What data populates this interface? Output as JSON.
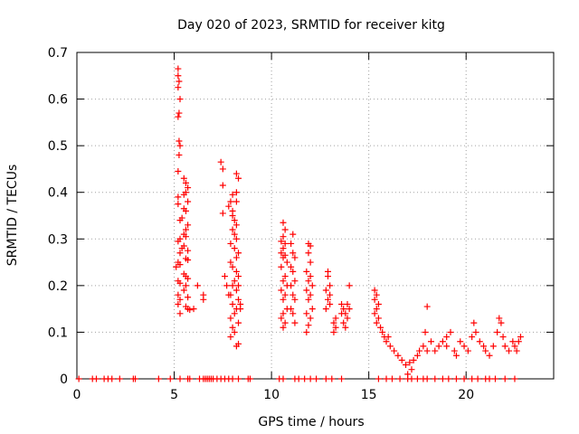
{
  "chart_data": {
    "type": "scatter",
    "title": "Day 020 of 2023, SRMTID for receiver kitg",
    "xlabel": "GPS time / hours",
    "ylabel": "SRMTID / TECUs",
    "xlim": [
      0,
      24.5
    ],
    "ylim": [
      0,
      0.7
    ],
    "xticks": [
      0,
      5,
      10,
      15,
      20
    ],
    "yticks": [
      0,
      0.1,
      0.2,
      0.3,
      0.4,
      0.5,
      0.6,
      0.7
    ],
    "xtick_labels": [
      "0",
      "5",
      "10",
      "15",
      "20"
    ],
    "ytick_labels": [
      "0",
      "0.1",
      "0.2",
      "0.3",
      "0.4",
      "0.5",
      "0.6",
      "0.7"
    ],
    "grid": true,
    "marker": "+",
    "color": "#ff0000",
    "series": [
      {
        "name": "kitg",
        "points": [
          [
            0.1,
            0
          ],
          [
            0.8,
            0
          ],
          [
            1.0,
            0
          ],
          [
            1.4,
            0
          ],
          [
            1.6,
            0
          ],
          [
            1.8,
            0
          ],
          [
            2.2,
            0
          ],
          [
            2.9,
            0
          ],
          [
            3.0,
            0
          ],
          [
            4.2,
            0
          ],
          [
            4.8,
            0
          ],
          [
            5.3,
            0
          ],
          [
            5.7,
            0
          ],
          [
            5.8,
            0
          ],
          [
            6.3,
            0
          ],
          [
            6.5,
            0
          ],
          [
            6.6,
            0
          ],
          [
            6.7,
            0
          ],
          [
            6.8,
            0
          ],
          [
            6.9,
            0
          ],
          [
            7.0,
            0
          ],
          [
            7.2,
            0
          ],
          [
            7.4,
            0
          ],
          [
            7.6,
            0
          ],
          [
            7.8,
            0
          ],
          [
            8.0,
            0
          ],
          [
            8.3,
            0
          ],
          [
            8.8,
            0
          ],
          [
            8.9,
            0
          ],
          [
            10.4,
            0
          ],
          [
            10.6,
            0
          ],
          [
            11.2,
            0
          ],
          [
            11.4,
            0
          ],
          [
            11.7,
            0
          ],
          [
            12.0,
            0
          ],
          [
            12.3,
            0
          ],
          [
            12.8,
            0
          ],
          [
            13.1,
            0
          ],
          [
            13.6,
            0
          ],
          [
            15.5,
            0
          ],
          [
            15.9,
            0
          ],
          [
            16.2,
            0
          ],
          [
            16.6,
            0
          ],
          [
            17.0,
            0
          ],
          [
            17.2,
            0
          ],
          [
            17.5,
            0
          ],
          [
            17.8,
            0
          ],
          [
            18.0,
            0
          ],
          [
            18.4,
            0
          ],
          [
            18.8,
            0
          ],
          [
            19.1,
            0
          ],
          [
            19.5,
            0
          ],
          [
            19.9,
            0
          ],
          [
            20.3,
            0
          ],
          [
            20.6,
            0
          ],
          [
            21.0,
            0
          ],
          [
            21.2,
            0
          ],
          [
            21.5,
            0
          ],
          [
            22.0,
            0
          ],
          [
            22.5,
            0
          ],
          [
            5.2,
            0.665
          ],
          [
            5.2,
            0.65
          ],
          [
            5.25,
            0.638
          ],
          [
            5.2,
            0.625
          ],
          [
            5.3,
            0.6
          ],
          [
            5.25,
            0.57
          ],
          [
            5.2,
            0.562
          ],
          [
            5.25,
            0.51
          ],
          [
            5.3,
            0.5
          ],
          [
            5.25,
            0.48
          ],
          [
            5.2,
            0.445
          ],
          [
            5.5,
            0.43
          ],
          [
            5.6,
            0.42
          ],
          [
            5.7,
            0.41
          ],
          [
            5.6,
            0.4
          ],
          [
            5.5,
            0.395
          ],
          [
            5.2,
            0.39
          ],
          [
            5.7,
            0.38
          ],
          [
            5.2,
            0.375
          ],
          [
            5.5,
            0.365
          ],
          [
            5.6,
            0.36
          ],
          [
            5.4,
            0.345
          ],
          [
            5.3,
            0.34
          ],
          [
            5.7,
            0.33
          ],
          [
            5.6,
            0.32
          ],
          [
            5.5,
            0.31
          ],
          [
            5.6,
            0.305
          ],
          [
            5.3,
            0.3
          ],
          [
            5.2,
            0.295
          ],
          [
            5.5,
            0.285
          ],
          [
            5.4,
            0.28
          ],
          [
            5.7,
            0.275
          ],
          [
            5.3,
            0.27
          ],
          [
            5.6,
            0.258
          ],
          [
            5.7,
            0.255
          ],
          [
            5.2,
            0.25
          ],
          [
            5.3,
            0.245
          ],
          [
            5.1,
            0.24
          ],
          [
            5.5,
            0.225
          ],
          [
            5.6,
            0.22
          ],
          [
            5.7,
            0.215
          ],
          [
            5.2,
            0.21
          ],
          [
            5.3,
            0.205
          ],
          [
            5.6,
            0.2
          ],
          [
            5.5,
            0.19
          ],
          [
            5.2,
            0.18
          ],
          [
            5.7,
            0.175
          ],
          [
            5.3,
            0.17
          ],
          [
            5.2,
            0.16
          ],
          [
            5.6,
            0.155
          ],
          [
            5.7,
            0.15
          ],
          [
            5.8,
            0.148
          ],
          [
            5.3,
            0.14
          ],
          [
            6.0,
            0.15
          ],
          [
            6.2,
            0.2
          ],
          [
            6.5,
            0.18
          ],
          [
            6.5,
            0.17
          ],
          [
            7.4,
            0.465
          ],
          [
            7.5,
            0.45
          ],
          [
            7.5,
            0.415
          ],
          [
            7.9,
            0.38
          ],
          [
            7.8,
            0.37
          ],
          [
            8.0,
            0.36
          ],
          [
            7.5,
            0.355
          ],
          [
            8.2,
            0.44
          ],
          [
            8.3,
            0.43
          ],
          [
            8.2,
            0.4
          ],
          [
            8.0,
            0.395
          ],
          [
            8.2,
            0.38
          ],
          [
            8.0,
            0.35
          ],
          [
            8.1,
            0.34
          ],
          [
            8.2,
            0.33
          ],
          [
            8.0,
            0.32
          ],
          [
            8.1,
            0.31
          ],
          [
            8.2,
            0.3
          ],
          [
            7.9,
            0.29
          ],
          [
            8.1,
            0.28
          ],
          [
            8.3,
            0.27
          ],
          [
            8.2,
            0.26
          ],
          [
            7.9,
            0.25
          ],
          [
            8.0,
            0.24
          ],
          [
            8.2,
            0.23
          ],
          [
            8.3,
            0.22
          ],
          [
            8.1,
            0.21
          ],
          [
            8.0,
            0.2
          ],
          [
            8.2,
            0.19
          ],
          [
            7.9,
            0.18
          ],
          [
            8.3,
            0.17
          ],
          [
            8.0,
            0.16
          ],
          [
            8.2,
            0.15
          ],
          [
            8.1,
            0.14
          ],
          [
            7.9,
            0.13
          ],
          [
            8.3,
            0.12
          ],
          [
            8.0,
            0.11
          ],
          [
            8.1,
            0.1
          ],
          [
            7.9,
            0.09
          ],
          [
            8.3,
            0.075
          ],
          [
            8.2,
            0.07
          ],
          [
            7.7,
            0.2
          ],
          [
            7.6,
            0.22
          ],
          [
            7.8,
            0.18
          ],
          [
            8.4,
            0.16
          ],
          [
            8.4,
            0.15
          ],
          [
            8.3,
            0.2
          ],
          [
            10.6,
            0.335
          ],
          [
            10.7,
            0.32
          ],
          [
            10.6,
            0.305
          ],
          [
            10.5,
            0.295
          ],
          [
            10.7,
            0.29
          ],
          [
            10.6,
            0.28
          ],
          [
            10.5,
            0.27
          ],
          [
            10.7,
            0.265
          ],
          [
            10.6,
            0.26
          ],
          [
            10.8,
            0.25
          ],
          [
            10.5,
            0.24
          ],
          [
            10.7,
            0.22
          ],
          [
            10.6,
            0.21
          ],
          [
            10.8,
            0.2
          ],
          [
            10.5,
            0.19
          ],
          [
            10.7,
            0.18
          ],
          [
            10.6,
            0.17
          ],
          [
            10.8,
            0.15
          ],
          [
            10.6,
            0.14
          ],
          [
            10.5,
            0.13
          ],
          [
            10.7,
            0.12
          ],
          [
            10.6,
            0.11
          ],
          [
            11.1,
            0.31
          ],
          [
            11.0,
            0.29
          ],
          [
            11.1,
            0.27
          ],
          [
            11.2,
            0.26
          ],
          [
            11.0,
            0.24
          ],
          [
            11.1,
            0.23
          ],
          [
            11.2,
            0.21
          ],
          [
            11.0,
            0.2
          ],
          [
            11.1,
            0.18
          ],
          [
            11.2,
            0.17
          ],
          [
            11.0,
            0.15
          ],
          [
            11.1,
            0.14
          ],
          [
            11.2,
            0.12
          ],
          [
            11.9,
            0.29
          ],
          [
            12.0,
            0.285
          ],
          [
            11.9,
            0.27
          ],
          [
            12.0,
            0.25
          ],
          [
            11.8,
            0.23
          ],
          [
            12.0,
            0.22
          ],
          [
            11.9,
            0.21
          ],
          [
            12.1,
            0.2
          ],
          [
            11.8,
            0.19
          ],
          [
            12.0,
            0.18
          ],
          [
            11.9,
            0.17
          ],
          [
            12.1,
            0.15
          ],
          [
            11.8,
            0.14
          ],
          [
            12.0,
            0.13
          ],
          [
            11.9,
            0.115
          ],
          [
            11.8,
            0.1
          ],
          [
            12.9,
            0.23
          ],
          [
            12.9,
            0.22
          ],
          [
            13.0,
            0.2
          ],
          [
            12.8,
            0.19
          ],
          [
            13.0,
            0.18
          ],
          [
            12.9,
            0.17
          ],
          [
            13.0,
            0.16
          ],
          [
            12.8,
            0.15
          ],
          [
            13.2,
            0.12
          ],
          [
            13.3,
            0.11
          ],
          [
            13.2,
            0.1
          ],
          [
            13.3,
            0.13
          ],
          [
            13.6,
            0.16
          ],
          [
            13.7,
            0.15
          ],
          [
            13.8,
            0.14
          ],
          [
            13.9,
            0.13
          ],
          [
            13.7,
            0.12
          ],
          [
            13.8,
            0.11
          ],
          [
            13.6,
            0.14
          ],
          [
            13.9,
            0.16
          ],
          [
            14.0,
            0.2
          ],
          [
            14.0,
            0.15
          ],
          [
            15.3,
            0.19
          ],
          [
            15.4,
            0.18
          ],
          [
            15.3,
            0.17
          ],
          [
            15.5,
            0.16
          ],
          [
            15.4,
            0.15
          ],
          [
            15.3,
            0.14
          ],
          [
            15.5,
            0.13
          ],
          [
            15.4,
            0.12
          ],
          [
            15.6,
            0.11
          ],
          [
            15.7,
            0.1
          ],
          [
            15.8,
            0.09
          ],
          [
            15.9,
            0.08
          ],
          [
            16.0,
            0.09
          ],
          [
            16.1,
            0.07
          ],
          [
            16.3,
            0.06
          ],
          [
            16.5,
            0.05
          ],
          [
            16.7,
            0.04
          ],
          [
            16.9,
            0.03
          ],
          [
            17.1,
            0.035
          ],
          [
            17.3,
            0.04
          ],
          [
            17.2,
            0.02
          ],
          [
            17.0,
            0.01
          ],
          [
            17.5,
            0.05
          ],
          [
            17.6,
            0.06
          ],
          [
            17.8,
            0.07
          ],
          [
            18.0,
            0.06
          ],
          [
            17.9,
            0.1
          ],
          [
            18.0,
            0.155
          ],
          [
            18.2,
            0.08
          ],
          [
            18.4,
            0.06
          ],
          [
            18.6,
            0.07
          ],
          [
            18.8,
            0.08
          ],
          [
            19.0,
            0.09
          ],
          [
            19.2,
            0.1
          ],
          [
            19.0,
            0.07
          ],
          [
            19.4,
            0.06
          ],
          [
            19.5,
            0.05
          ],
          [
            19.7,
            0.08
          ],
          [
            19.9,
            0.07
          ],
          [
            20.1,
            0.06
          ],
          [
            20.3,
            0.09
          ],
          [
            20.5,
            0.1
          ],
          [
            20.4,
            0.12
          ],
          [
            20.7,
            0.08
          ],
          [
            20.9,
            0.07
          ],
          [
            21.0,
            0.06
          ],
          [
            21.2,
            0.05
          ],
          [
            21.4,
            0.07
          ],
          [
            21.6,
            0.1
          ],
          [
            21.7,
            0.13
          ],
          [
            21.8,
            0.12
          ],
          [
            21.9,
            0.09
          ],
          [
            22.0,
            0.07
          ],
          [
            22.2,
            0.06
          ],
          [
            22.4,
            0.08
          ],
          [
            22.5,
            0.07
          ],
          [
            22.7,
            0.08
          ],
          [
            22.8,
            0.09
          ],
          [
            22.6,
            0.06
          ]
        ]
      }
    ]
  }
}
